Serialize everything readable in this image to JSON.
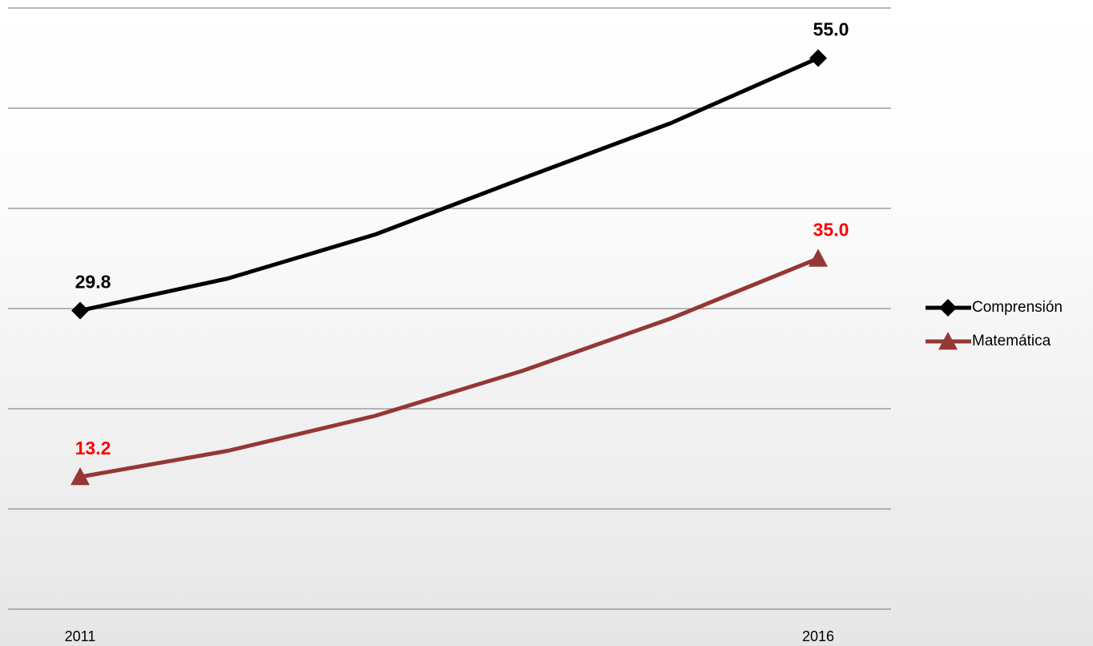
{
  "chart_data": {
    "type": "line",
    "categories": [
      "2011",
      null,
      null,
      null,
      null,
      "2016"
    ],
    "series": [
      {
        "name": "Comprensión",
        "color": "#000000",
        "marker": "diamond",
        "label_color": "#000000",
        "values": [
          29.8,
          33.0,
          37.4,
          43.0,
          48.5,
          55.0
        ],
        "value_labels": [
          "29.8",
          null,
          null,
          null,
          null,
          "55.0"
        ]
      },
      {
        "name": "Matemática",
        "color": "#953735",
        "marker": "triangle",
        "label_color": "#ff0000",
        "values": [
          13.2,
          15.8,
          19.3,
          23.8,
          29.0,
          35.0
        ],
        "value_labels": [
          "13.2",
          null,
          null,
          null,
          null,
          "35.0"
        ]
      }
    ],
    "ylim": [
      0,
      60
    ],
    "yticks": [
      0,
      10,
      20,
      30,
      40,
      50,
      60
    ],
    "grid": true,
    "legend": "right"
  }
}
